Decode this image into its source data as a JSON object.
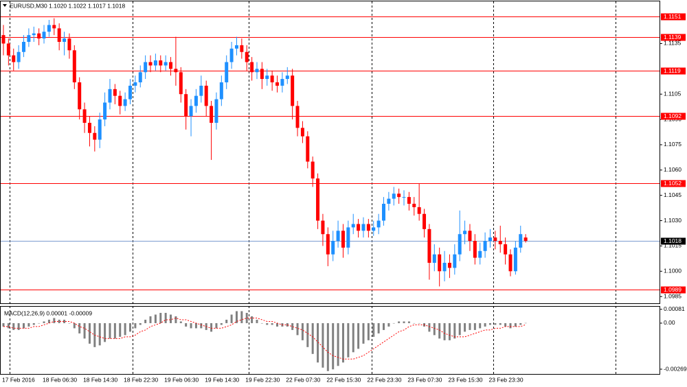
{
  "chart_data": [
    {
      "type": "candlestick",
      "title": "EURUSD,M30  1.1020 1.1022 1.1017 1.1018",
      "categories": [
        "17 Feb 2016",
        null,
        null,
        null,
        null,
        null,
        null,
        null,
        "18 Feb 06:30",
        null,
        null,
        null,
        null,
        null,
        null,
        null,
        "18 Feb 14:30",
        null,
        null,
        null,
        null,
        null,
        null,
        null,
        "18 Feb 22:30",
        null,
        null,
        null,
        null,
        null,
        null,
        null,
        "19 Feb 06:30",
        null,
        null,
        null,
        null,
        null,
        null,
        null,
        "19 Feb 14:30",
        null,
        null,
        null,
        null,
        null,
        null,
        null,
        "19 Feb 22:30",
        null,
        null,
        null,
        null,
        null,
        null,
        null,
        "22 Feb 07:30",
        null,
        null,
        null,
        null,
        null,
        null,
        null,
        "22 Feb 15:30",
        null,
        null,
        null,
        null,
        null,
        null,
        null,
        "22 Feb 23:30",
        null,
        null,
        null,
        null,
        null,
        null,
        null,
        "23 Feb 07:30",
        null,
        null,
        null,
        null,
        null,
        null,
        null,
        "23 Feb 15:30",
        null,
        null,
        null,
        null,
        null,
        null,
        null,
        "23 Feb 23:30",
        null,
        null,
        null,
        null,
        null,
        null,
        null
      ],
      "open": [
        1.114,
        1.1135,
        1.1128,
        1.1124,
        1.113,
        1.1136,
        1.114,
        1.1141,
        1.1138,
        1.1142,
        1.1146,
        1.1144,
        1.1136,
        1.1138,
        1.1131,
        1.1112,
        1.1096,
        1.1088,
        1.1082,
        1.1078,
        1.109,
        1.11,
        1.1108,
        1.1104,
        1.1098,
        1.1102,
        1.111,
        1.1112,
        1.1118,
        1.1124,
        1.1122,
        1.1125,
        1.1122,
        1.1124,
        1.112,
        1.1118,
        1.1105,
        1.1092,
        1.1098,
        1.1104,
        1.111,
        1.1098,
        1.1088,
        1.1102,
        1.1112,
        1.1124,
        1.1132,
        1.1134,
        1.113,
        1.1124,
        1.1118,
        1.112,
        1.1114,
        1.1116,
        1.1112,
        1.111,
        1.1114,
        1.1116,
        1.1098,
        1.1085,
        1.108,
        1.1065,
        1.1055,
        1.103,
        1.1022,
        1.101,
        1.1018,
        1.1024,
        1.1014,
        1.1026,
        1.1028,
        1.1024,
        1.1028,
        1.1024,
        1.1026,
        1.103,
        1.104,
        1.1043,
        1.1046,
        1.1044,
        1.1044,
        1.104,
        1.1038,
        1.1034,
        1.1025,
        1.1005,
        1.101,
        1.1,
        1.1005,
        1.1002,
        1.101,
        1.1022,
        1.1024,
        1.1018,
        1.1008,
        1.1012,
        1.1018,
        1.102,
        1.1018,
        1.1016,
        1.101,
        1.1,
        1.1014,
        1.102
      ],
      "high": [
        1.1146,
        1.1138,
        1.1132,
        1.1134,
        1.114,
        1.1144,
        1.1145,
        1.1144,
        1.1146,
        1.1149,
        1.115,
        1.1147,
        1.1142,
        1.1141,
        1.1134,
        1.1115,
        1.11,
        1.1092,
        1.1086,
        1.1094,
        1.1106,
        1.1114,
        1.1111,
        1.1107,
        1.1106,
        1.1114,
        1.1116,
        1.1122,
        1.1128,
        1.1128,
        1.1129,
        1.1128,
        1.1128,
        1.1127,
        1.1139,
        1.1121,
        1.1108,
        1.1102,
        1.1108,
        1.1116,
        1.1113,
        1.1101,
        1.1106,
        1.1116,
        1.1128,
        1.1136,
        1.1139,
        1.1138,
        1.1134,
        1.1127,
        1.1124,
        1.1124,
        1.112,
        1.1119,
        1.1116,
        1.1118,
        1.1121,
        1.112,
        1.1101,
        1.1089,
        1.1083,
        1.1068,
        1.1058,
        1.1034,
        1.1026,
        1.1024,
        1.103,
        1.1028,
        1.103,
        1.1034,
        1.1031,
        1.1032,
        1.1031,
        1.103,
        1.1034,
        1.1044,
        1.1047,
        1.105,
        1.1049,
        1.1048,
        1.1047,
        1.1044,
        1.1052,
        1.1037,
        1.1028,
        1.1016,
        1.1014,
        1.1012,
        1.101,
        1.1016,
        1.1036,
        1.103,
        1.1028,
        1.1022,
        1.1017,
        1.1023,
        1.1025,
        1.1024,
        1.1027,
        1.102,
        1.1013,
        1.1018,
        1.1027,
        1.1022
      ],
      "low": [
        1.1128,
        1.1122,
        1.1119,
        1.112,
        1.1127,
        1.1133,
        1.1136,
        1.1134,
        1.1135,
        1.1139,
        1.114,
        1.1131,
        1.1128,
        1.1126,
        1.1108,
        1.109,
        1.1082,
        1.1074,
        1.1071,
        1.1073,
        1.1086,
        1.1096,
        1.1099,
        1.1093,
        1.1095,
        1.1099,
        1.1106,
        1.1109,
        1.1114,
        1.1118,
        1.1119,
        1.1118,
        1.1119,
        1.1116,
        1.111,
        1.11,
        1.1084,
        1.108,
        1.1094,
        1.11,
        1.1092,
        1.1066,
        1.1084,
        1.1098,
        1.1108,
        1.112,
        1.1128,
        1.1126,
        1.1119,
        1.1113,
        1.1114,
        1.1108,
        1.111,
        1.1107,
        1.1106,
        1.1106,
        1.1111,
        1.109,
        1.108,
        1.1076,
        1.1061,
        1.105,
        1.1025,
        1.1015,
        1.1003,
        1.1006,
        1.1014,
        1.1008,
        1.101,
        1.1022,
        1.102,
        1.102,
        1.102,
        1.1021,
        1.1022,
        1.1027,
        1.1036,
        1.1039,
        1.104,
        1.1039,
        1.1036,
        1.1033,
        1.103,
        1.102,
        1.0995,
        1.1,
        1.0991,
        1.0994,
        1.0996,
        1.0998,
        1.1006,
        1.1016,
        1.1012,
        1.1004,
        1.1004,
        1.1008,
        1.1014,
        1.1013,
        1.1011,
        1.1004,
        1.0997,
        1.0998,
        1.1011,
        1.1017
      ],
      "close": [
        1.1135,
        1.1128,
        1.1124,
        1.113,
        1.1136,
        1.114,
        1.1141,
        1.1138,
        1.1142,
        1.1146,
        1.1144,
        1.1136,
        1.1138,
        1.1131,
        1.1112,
        1.1096,
        1.1088,
        1.1082,
        1.1078,
        1.109,
        1.11,
        1.1108,
        1.1104,
        1.1098,
        1.1102,
        1.111,
        1.1112,
        1.1118,
        1.1124,
        1.1122,
        1.1125,
        1.1122,
        1.1124,
        1.112,
        1.1118,
        1.1105,
        1.1092,
        1.1098,
        1.1104,
        1.111,
        1.1098,
        1.1088,
        1.1102,
        1.1112,
        1.1124,
        1.1132,
        1.1134,
        1.113,
        1.1124,
        1.1118,
        1.112,
        1.1114,
        1.1116,
        1.1112,
        1.111,
        1.1114,
        1.1116,
        1.1098,
        1.1085,
        1.108,
        1.1065,
        1.1055,
        1.103,
        1.1022,
        1.101,
        1.1018,
        1.1024,
        1.1014,
        1.1026,
        1.1028,
        1.1024,
        1.1028,
        1.1024,
        1.1026,
        1.103,
        1.104,
        1.1043,
        1.1046,
        1.1044,
        1.1044,
        1.104,
        1.1038,
        1.1034,
        1.1025,
        1.1005,
        1.101,
        1.1,
        1.1005,
        1.1002,
        1.101,
        1.1022,
        1.1024,
        1.1018,
        1.1008,
        1.1012,
        1.1018,
        1.102,
        1.1018,
        1.1016,
        1.101,
        1.1,
        1.1014,
        1.1022,
        1.1018
      ],
      "up_color": "#1e90ff",
      "down_color": "#ff0000",
      "ylim": [
        1.0981,
        1.116
      ],
      "yticks": [
        1.1135,
        1.1105,
        {
          "value": 1.109,
          "label": "1.1090"
        },
        1.1075,
        {
          "value": 1.106,
          "label": "1.1060"
        },
        1.1045,
        {
          "value": 1.103,
          "label": "1.1030"
        },
        1.1015,
        {
          "value": 1.1,
          "label": "1.1000"
        },
        1.0985
      ],
      "levels": [
        {
          "value": 1.1151,
          "color": "#ff0000",
          "label_fill": "#ff0000"
        },
        {
          "value": 1.1139,
          "color": "#ff0000",
          "label_fill": "#ff0000"
        },
        {
          "value": 1.1119,
          "color": "#ff0000",
          "label_fill": "#ff0000"
        },
        {
          "value": 1.1092,
          "color": "#ff0000",
          "label_fill": "#ff0000"
        },
        {
          "value": 1.1052,
          "color": "#ff0000",
          "label_fill": "#ff0000"
        },
        {
          "value": 1.1018,
          "color": "#7b9bd1",
          "label_fill": "#000000"
        },
        {
          "value": 1.0989,
          "color": "#ff0000",
          "label_fill": "#ff0000"
        }
      ]
    },
    {
      "type": "macd",
      "title": "MACD(12,26,9) 0.00001 -0.00009",
      "ylim": [
        -0.00297,
        0.00096
      ],
      "yticks": [
        0.00081,
        {
          "value": 0,
          "label": "0.00"
        },
        -0.00269
      ],
      "series": [
        {
          "style": "histogram",
          "color": "#808080",
          "values": [
            -0.0002,
            -0.0003,
            -0.0004,
            -0.0004,
            -0.0003,
            -0.0002,
            -0.0001,
            0.0,
            0.0001,
            0.0002,
            0.0003,
            0.0002,
            0.0002,
            0.0,
            -0.0003,
            -0.0006,
            -0.0009,
            -0.0012,
            -0.0014,
            -0.0013,
            -0.0011,
            -0.0009,
            -0.0009,
            -0.0008,
            -0.0007,
            -0.0005,
            -0.0003,
            -0.0001,
            0.0002,
            0.0004,
            0.0005,
            0.0006,
            0.0006,
            0.0005,
            0.0004,
            0.0001,
            -0.0002,
            -0.0003,
            -0.0003,
            -0.0003,
            -0.0004,
            -0.0005,
            -0.0003,
            -0.0001,
            0.0002,
            0.0005,
            0.0007,
            0.0007,
            0.0006,
            0.0004,
            0.0002,
            0.0,
            -0.0001,
            -0.0001,
            -0.0002,
            -0.0002,
            -0.0002,
            -0.0004,
            -0.0007,
            -0.001,
            -0.0014,
            -0.0018,
            -0.0023,
            -0.0026,
            -0.0028,
            -0.0027,
            -0.0025,
            -0.0023,
            -0.002,
            -0.0017,
            -0.0015,
            -0.0012,
            -0.001,
            -0.0008,
            -0.0006,
            -0.0004,
            -0.0002,
            0.0,
            0.0001,
            0.0001,
            0.0001,
            0.0,
            0.0,
            -0.0002,
            -0.0005,
            -0.0007,
            -0.0009,
            -0.001,
            -0.001,
            -0.0009,
            -0.0007,
            -0.0005,
            -0.0004,
            -0.0004,
            -0.0003,
            -0.0002,
            -0.0001,
            -0.0001,
            -0.0001,
            -0.0002,
            -0.0003,
            -0.0002,
            -0.0001,
            1e-05
          ]
        },
        {
          "style": "dotted-line",
          "color": "#ff0000",
          "values": [
            -0.0002,
            -0.0002,
            -0.0003,
            -0.0003,
            -0.0003,
            -0.0003,
            -0.0002,
            -0.0002,
            -0.0001,
            0.0,
            0.0001,
            0.0001,
            0.0001,
            0.0001,
            0.0,
            -0.0002,
            -0.0003,
            -0.0005,
            -0.0007,
            -0.0008,
            -0.0009,
            -0.0009,
            -0.0009,
            -0.0009,
            -0.0008,
            -0.0008,
            -0.0007,
            -0.0005,
            -0.0004,
            -0.0002,
            -0.0001,
            0.0,
            0.0002,
            0.0002,
            0.0003,
            0.0002,
            0.0002,
            0.0001,
            0.0,
            -0.0001,
            -0.0002,
            -0.0003,
            -0.0003,
            -0.0003,
            -0.0002,
            -0.0001,
            0.0001,
            0.0002,
            0.0003,
            0.0003,
            0.0003,
            0.0002,
            0.0001,
            0.0001,
            0.0,
            -0.0001,
            -0.0001,
            -0.0002,
            -0.0003,
            -0.0004,
            -0.0006,
            -0.0008,
            -0.0011,
            -0.0014,
            -0.0017,
            -0.0019,
            -0.002,
            -0.0021,
            -0.0021,
            -0.0021,
            -0.002,
            -0.0019,
            -0.0017,
            -0.0015,
            -0.0013,
            -0.0011,
            -0.0009,
            -0.0007,
            -0.0005,
            -0.0004,
            -0.0002,
            -0.0001,
            -0.0001,
            -0.0001,
            -0.0002,
            -0.0003,
            -0.0004,
            -0.0006,
            -0.0007,
            -0.0008,
            -0.0008,
            -0.0008,
            -0.0007,
            -0.0006,
            -0.0005,
            -0.0004,
            -0.0004,
            -0.0003,
            -0.0003,
            -0.0002,
            -0.0002,
            -0.0002,
            -0.0002,
            -9e-05
          ]
        }
      ]
    }
  ]
}
